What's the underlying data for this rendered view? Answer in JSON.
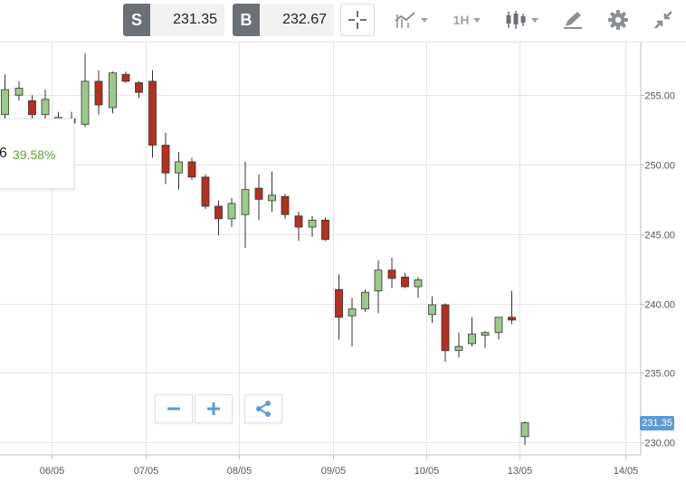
{
  "toolbar": {
    "sell_letter": "S",
    "sell_value": "231.35",
    "buy_letter": "B",
    "buy_value": "232.67",
    "timeframe": "1H",
    "icons": [
      "crosshair-icon",
      "chart-type-icon",
      "candlestick-icon",
      "draw-icon",
      "gear-icon",
      "collapse-icon"
    ]
  },
  "tooltip": {
    "value": "6",
    "percent": "39.58%"
  },
  "current_price_label": "231.35",
  "colors": {
    "up_fill": "#9bc98b",
    "down_fill": "#b5301e",
    "grid": "#e5e5e5",
    "price_tag": "#5b9bd5",
    "percent_text": "#5aa832"
  },
  "chart_data": {
    "type": "candlestick",
    "x_tick_labels": [
      "06/05",
      "07/05",
      "08/05",
      "09/05",
      "10/05",
      "13/05",
      "14/05"
    ],
    "y_tick_labels": [
      "230.00",
      "235.00",
      "240.00",
      "245.00",
      "250.00",
      "255.00"
    ],
    "ylim": [
      229.5,
      258
    ],
    "grid": true,
    "candles": [
      {
        "o": 253.6,
        "h": 256.5,
        "l": 252.8,
        "c": 255.4
      },
      {
        "o": 255.0,
        "h": 256.0,
        "l": 254.6,
        "c": 255.5
      },
      {
        "o": 254.6,
        "h": 255.0,
        "l": 253.2,
        "c": 253.6
      },
      {
        "o": 253.6,
        "h": 255.4,
        "l": 253.0,
        "c": 254.7
      },
      {
        "o": 253.0,
        "h": 253.8,
        "l": 252.0,
        "c": 253.4
      },
      {
        "o": 253.3,
        "h": 253.8,
        "l": 252.9,
        "c": 253.0
      },
      {
        "o": 252.9,
        "h": 258.0,
        "l": 252.7,
        "c": 256.0
      },
      {
        "o": 256.0,
        "h": 256.8,
        "l": 253.6,
        "c": 254.3
      },
      {
        "o": 254.1,
        "h": 256.7,
        "l": 253.7,
        "c": 256.6
      },
      {
        "o": 256.5,
        "h": 256.7,
        "l": 255.9,
        "c": 256.0
      },
      {
        "o": 255.9,
        "h": 256.0,
        "l": 254.8,
        "c": 255.2
      },
      {
        "o": 256.0,
        "h": 256.8,
        "l": 250.5,
        "c": 251.4
      },
      {
        "o": 251.4,
        "h": 252.3,
        "l": 248.6,
        "c": 249.4
      },
      {
        "o": 249.4,
        "h": 250.9,
        "l": 248.2,
        "c": 250.2
      },
      {
        "o": 250.2,
        "h": 250.5,
        "l": 248.9,
        "c": 249.1
      },
      {
        "o": 249.1,
        "h": 249.3,
        "l": 246.8,
        "c": 247.0
      },
      {
        "o": 247.0,
        "h": 247.4,
        "l": 244.9,
        "c": 246.1
      },
      {
        "o": 246.1,
        "h": 247.6,
        "l": 245.5,
        "c": 247.2
      },
      {
        "o": 246.4,
        "h": 250.2,
        "l": 244.0,
        "c": 248.2
      },
      {
        "o": 248.3,
        "h": 249.3,
        "l": 246.0,
        "c": 247.5
      },
      {
        "o": 247.4,
        "h": 249.5,
        "l": 246.6,
        "c": 247.8
      },
      {
        "o": 247.7,
        "h": 247.9,
        "l": 246.1,
        "c": 246.4
      },
      {
        "o": 246.3,
        "h": 246.6,
        "l": 244.5,
        "c": 245.5
      },
      {
        "o": 245.5,
        "h": 246.3,
        "l": 244.8,
        "c": 246.0
      },
      {
        "o": 246.0,
        "h": 246.2,
        "l": 244.5,
        "c": 244.6
      },
      {
        "o": 241.0,
        "h": 242.1,
        "l": 237.4,
        "c": 239.0
      },
      {
        "o": 239.1,
        "h": 240.4,
        "l": 236.9,
        "c": 239.6
      },
      {
        "o": 239.6,
        "h": 241.0,
        "l": 239.4,
        "c": 240.8
      },
      {
        "o": 240.9,
        "h": 243.1,
        "l": 239.3,
        "c": 242.4
      },
      {
        "o": 242.4,
        "h": 243.3,
        "l": 241.1,
        "c": 241.8
      },
      {
        "o": 241.9,
        "h": 242.2,
        "l": 241.1,
        "c": 241.2
      },
      {
        "o": 241.2,
        "h": 241.9,
        "l": 240.4,
        "c": 241.7
      },
      {
        "o": 239.2,
        "h": 240.5,
        "l": 238.6,
        "c": 239.9
      },
      {
        "o": 239.9,
        "h": 240.0,
        "l": 235.8,
        "c": 236.6
      },
      {
        "o": 236.6,
        "h": 237.9,
        "l": 236.1,
        "c": 236.9
      },
      {
        "o": 237.1,
        "h": 239.0,
        "l": 236.9,
        "c": 237.8
      },
      {
        "o": 237.7,
        "h": 238.0,
        "l": 236.8,
        "c": 237.9
      },
      {
        "o": 237.9,
        "h": 239.0,
        "l": 237.4,
        "c": 239.0
      },
      {
        "o": 239.0,
        "h": 240.9,
        "l": 238.5,
        "c": 238.8
      },
      {
        "o": 230.4,
        "h": 231.5,
        "l": 229.8,
        "c": 231.4
      }
    ]
  }
}
